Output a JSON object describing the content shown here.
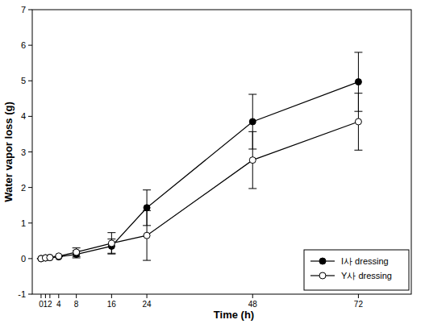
{
  "chart_data": {
    "type": "line",
    "x_label": "Time (h)",
    "y_label": "Water vapor loss (g)",
    "x": [
      0,
      1,
      2,
      4,
      8,
      16,
      24,
      48,
      72
    ],
    "xlim": [
      -2,
      84
    ],
    "xticks": [
      0,
      1,
      2,
      4,
      8,
      16,
      24,
      48,
      72
    ],
    "ylim": [
      -1,
      7
    ],
    "yticks": [
      -1,
      0,
      1,
      2,
      3,
      4,
      5,
      6,
      7
    ],
    "grid": false,
    "legend": "lower right",
    "series": [
      {
        "name": "I사 dressing",
        "color": "#000000",
        "marker": "filled_circle",
        "line_style": "solid",
        "values": [
          0,
          0.02,
          0.03,
          0.05,
          0.12,
          0.35,
          1.43,
          3.85,
          4.97
        ],
        "errors": [
          0,
          0,
          0,
          0,
          0.1,
          0.2,
          0.5,
          0.77,
          0.83
        ]
      },
      {
        "name": "Y사 dressing",
        "color": "#000000",
        "marker": "open_circle",
        "line_style": "solid",
        "values": [
          0,
          0.02,
          0.03,
          0.07,
          0.18,
          0.43,
          0.65,
          2.77,
          3.85
        ],
        "errors": [
          0,
          0,
          0,
          0,
          0.12,
          0.3,
          0.7,
          0.8,
          0.8
        ]
      }
    ]
  }
}
